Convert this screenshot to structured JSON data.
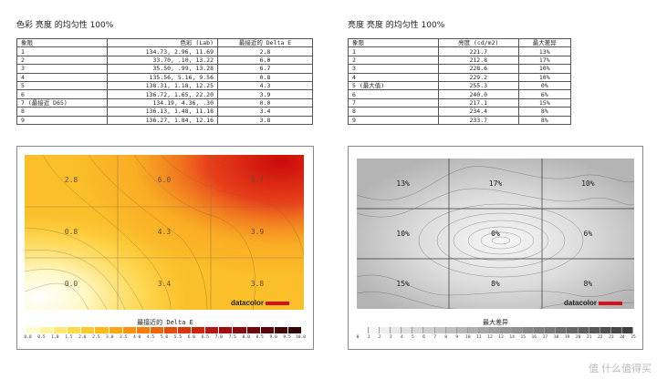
{
  "left": {
    "title": "色彩 亮度 的均匀性 100%",
    "headers": [
      "象限",
      "色彩 (Lab)",
      "最接近的 Delta E"
    ],
    "rows": [
      [
        "1",
        "134.73,  2.96,  11.69",
        "2.8"
      ],
      [
        "2",
        "33.70,  .10,  13.22",
        "6.0"
      ],
      [
        "3",
        "35.50,  .99,  13.28",
        "6.7"
      ],
      [
        "4",
        "135.56,  5.16,  9.56",
        "0.8"
      ],
      [
        "5",
        "138.31,  1.18,  12.25",
        "4.3"
      ],
      [
        "6",
        "136.72,  1.65,  22.20",
        "3.9"
      ],
      [
        "7 (最接近 D65)",
        "134.19,  4.36,  .30",
        "0.0"
      ],
      [
        "8",
        "136.13,  1.48,  11.18",
        "3.4"
      ],
      [
        "9",
        "136.27,  1.84,  12.16",
        "3.8"
      ]
    ],
    "grid_values": [
      "2.8",
      "6.0",
      "6.7",
      "0.8",
      "4.3",
      "3.9",
      "0.0",
      "3.4",
      "3.8"
    ],
    "logo": "datacolor",
    "scale_title": "最接近的 Delta E",
    "scale_ticks": [
      "0.0",
      "0.5",
      "1.0",
      "1.5",
      "2.0",
      "2.5",
      "3.0",
      "3.5",
      "4.0",
      "4.5",
      "5.0",
      "5.5",
      "6.0",
      "6.5",
      "7.0",
      "7.5",
      "8.0",
      "8.5",
      "9.0",
      "9.5",
      "10.0"
    ],
    "scale_colors": [
      "#fffbd0",
      "#fff3a0",
      "#ffe770",
      "#ffd94a",
      "#ffca2e",
      "#ffb91a",
      "#ffa610",
      "#ff920c",
      "#f97c0a",
      "#f0640a",
      "#e54c0a",
      "#d8360c",
      "#c8240e",
      "#b41610",
      "#9e0e10",
      "#860a0e",
      "#6e080c",
      "#58060a",
      "#440508",
      "#300405"
    ]
  },
  "right": {
    "title": "亮度 亮度 的均匀性 100%",
    "headers": [
      "象限",
      "亮度 (cd/m2)",
      "最大差异"
    ],
    "rows": [
      [
        "1",
        "221.7",
        "13%"
      ],
      [
        "2",
        "212.8",
        "17%"
      ],
      [
        "3",
        "228.6",
        "10%"
      ],
      [
        "4",
        "229.2",
        "10%"
      ],
      [
        "5 (最大值)",
        "255.3",
        "0%"
      ],
      [
        "6",
        "240.0",
        "6%"
      ],
      [
        "7",
        "217.1",
        "15%"
      ],
      [
        "8",
        "234.4",
        "8%"
      ],
      [
        "9",
        "233.7",
        "8%"
      ]
    ],
    "grid_values": [
      "13%",
      "17%",
      "10%",
      "10%",
      "0%",
      "6%",
      "15%",
      "8%",
      "8%"
    ],
    "logo": "datacolor",
    "scale_title": "最大差异",
    "scale_ticks": [
      "0",
      "1",
      "2",
      "3",
      "4",
      "5",
      "6",
      "7",
      "8",
      "9",
      "10",
      "11",
      "12",
      "13",
      "14",
      "15",
      "16",
      "17",
      "18",
      "19",
      "20",
      "21",
      "22",
      "23",
      "24",
      "25"
    ],
    "scale_colors": [
      "#ffffff",
      "#f7f7f7",
      "#efefef",
      "#e7e7e7",
      "#dfdfdf",
      "#d7d7d7",
      "#cfcfcf",
      "#c7c7c7",
      "#bfbfbf",
      "#b7b7b7",
      "#afafaf",
      "#a7a7a7",
      "#9f9f9f",
      "#979797",
      "#8f8f8f",
      "#878787",
      "#7f7f7f",
      "#777777",
      "#6f6f6f",
      "#676767",
      "#5f5f5f",
      "#575757",
      "#4f4f4f",
      "#474747",
      "#3f3f3f"
    ]
  },
  "watermark": "值 什么值得买"
}
